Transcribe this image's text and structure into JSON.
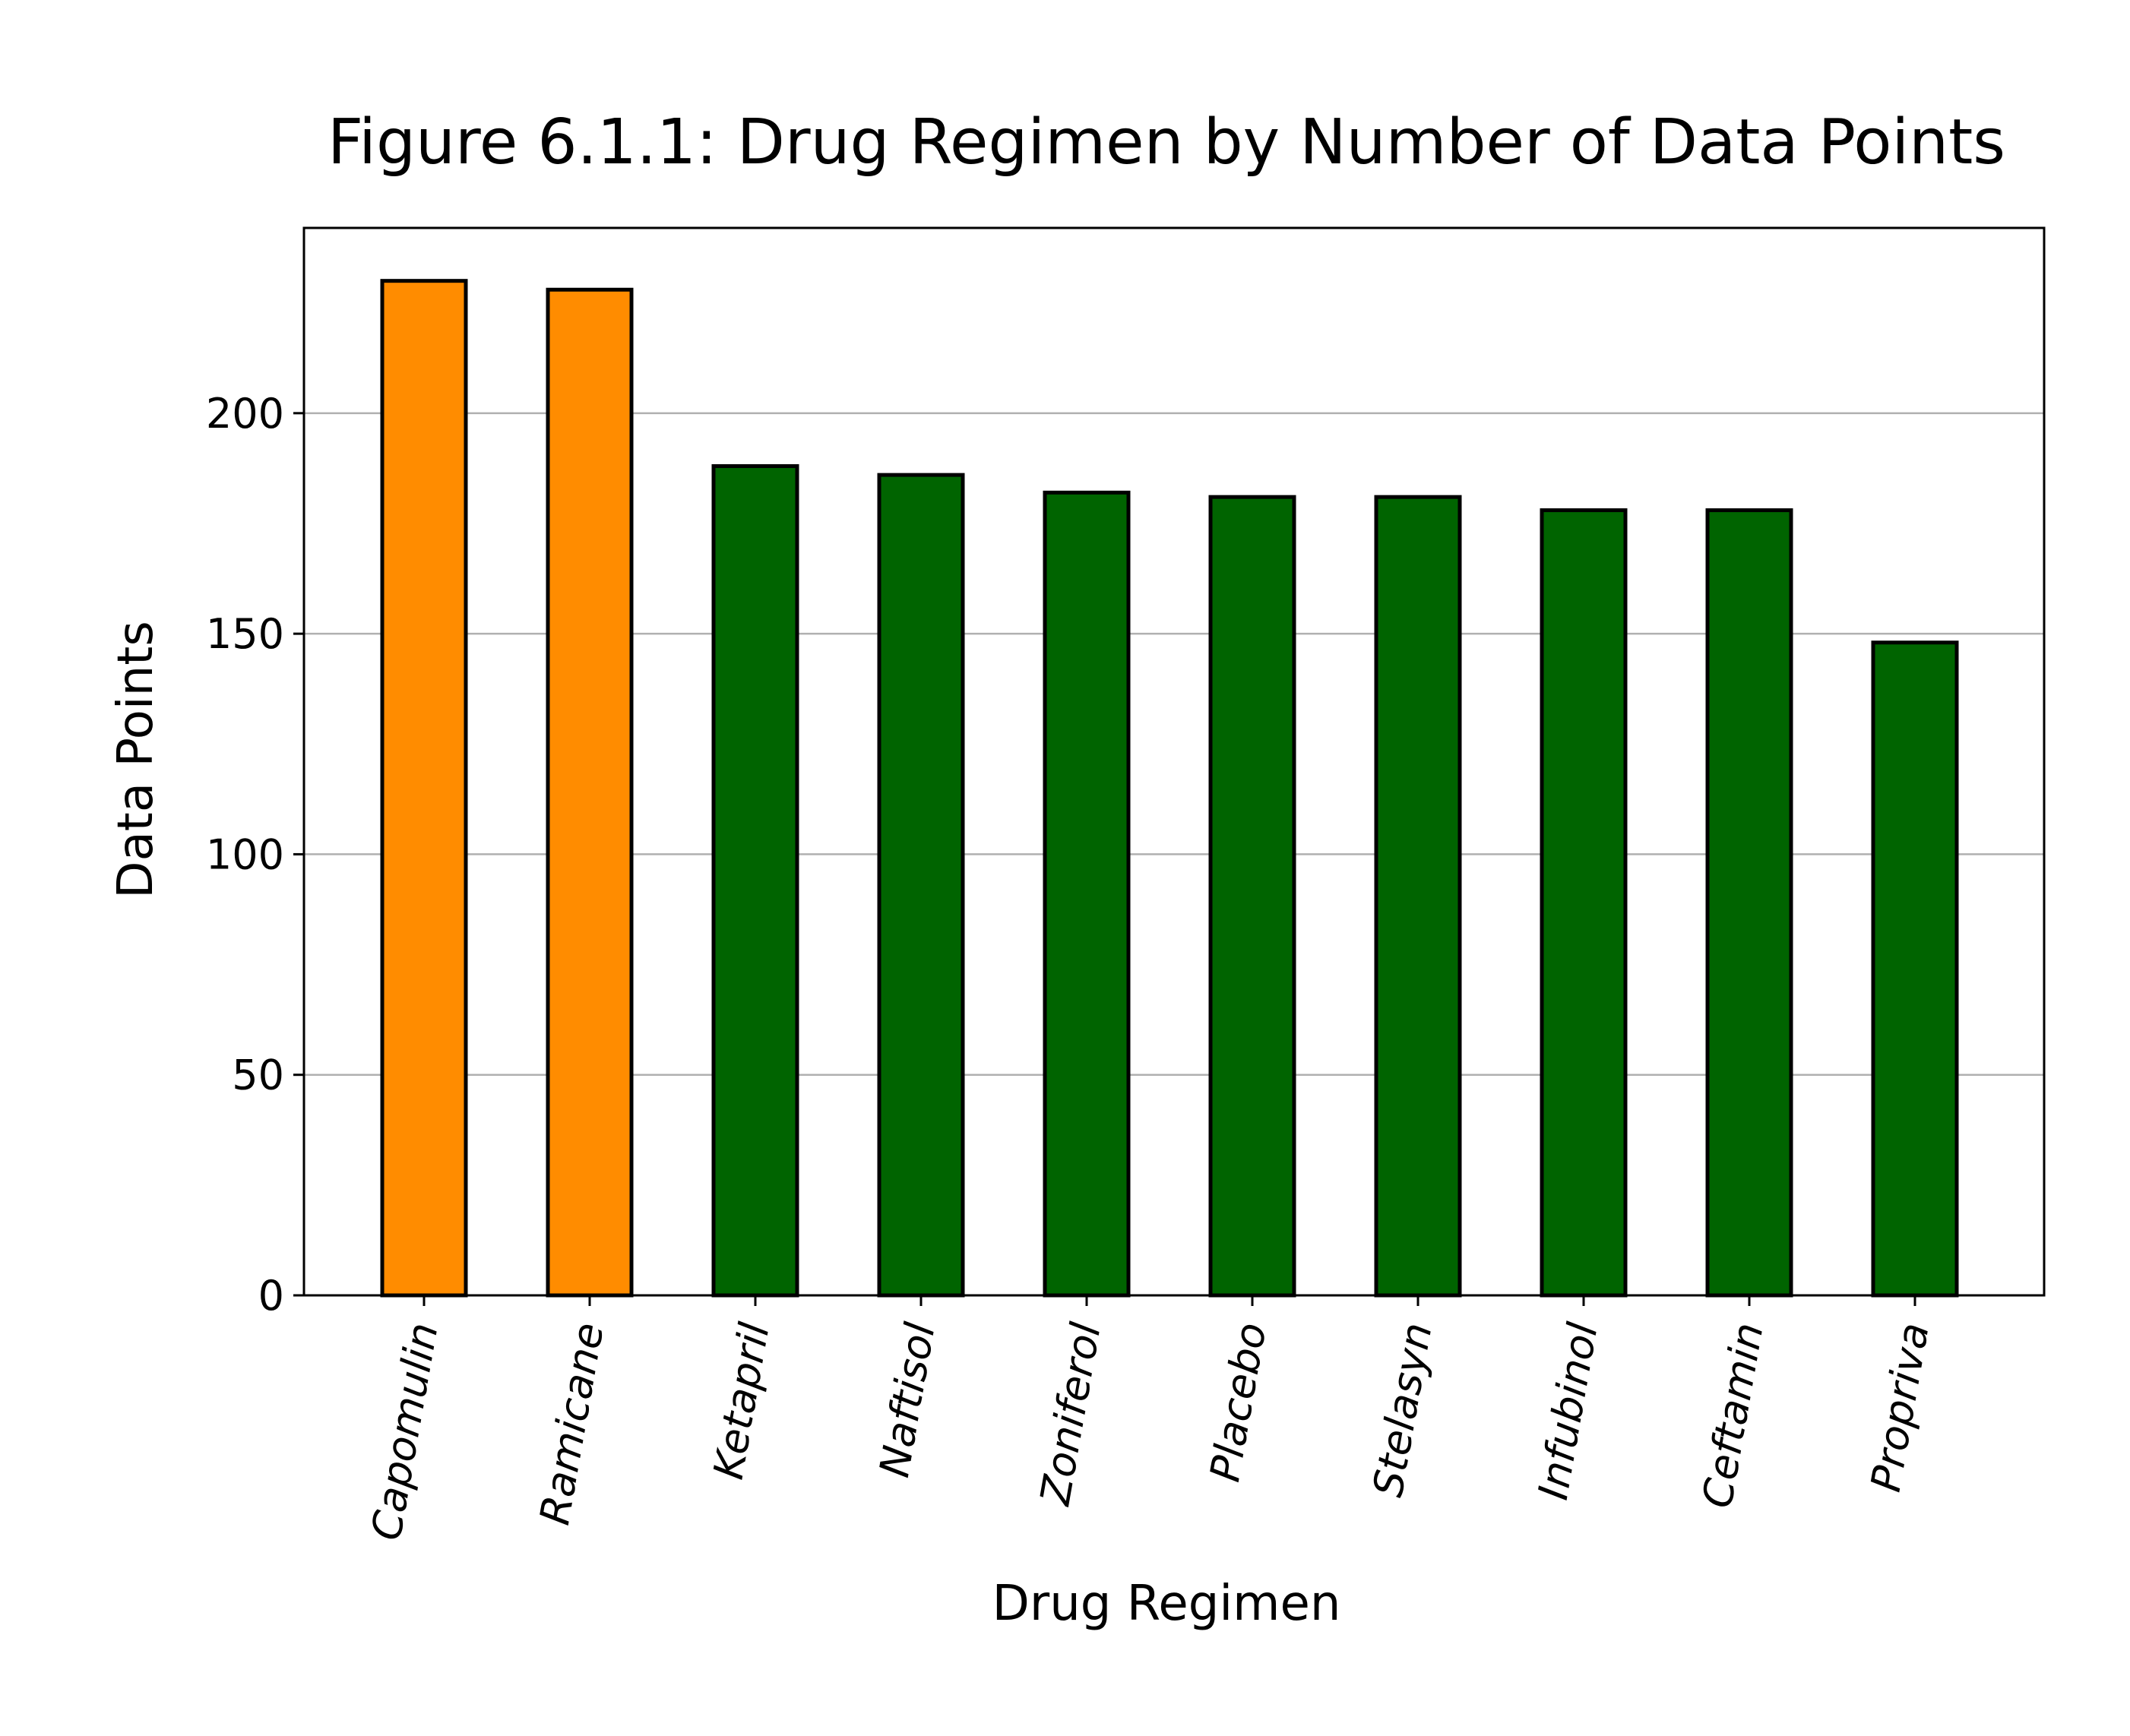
{
  "chart_data": {
    "type": "bar",
    "title": "Figure 6.1.1: Drug Regimen by Number of Data Points",
    "xlabel": "Drug Regimen",
    "ylabel": "Data Points",
    "categories": [
      "Capomulin",
      "Ramicane",
      "Ketapril",
      "Naftisol",
      "Zoniferol",
      "Placebo",
      "Stelasyn",
      "Infubinol",
      "Ceftamin",
      "Propriva"
    ],
    "values": [
      230,
      228,
      188,
      186,
      182,
      181,
      181,
      178,
      178,
      148
    ],
    "bar_colors": [
      "#ff8c00",
      "#ff8c00",
      "#006400",
      "#006400",
      "#006400",
      "#006400",
      "#006400",
      "#006400",
      "#006400",
      "#006400"
    ],
    "edge_color": "#000000",
    "grid_color": "#b0b0b0",
    "y_ticks": [
      0,
      50,
      100,
      150,
      200
    ],
    "ylim": [
      0,
      242
    ],
    "grid": "y-major",
    "x_tick_rotation": 80
  }
}
